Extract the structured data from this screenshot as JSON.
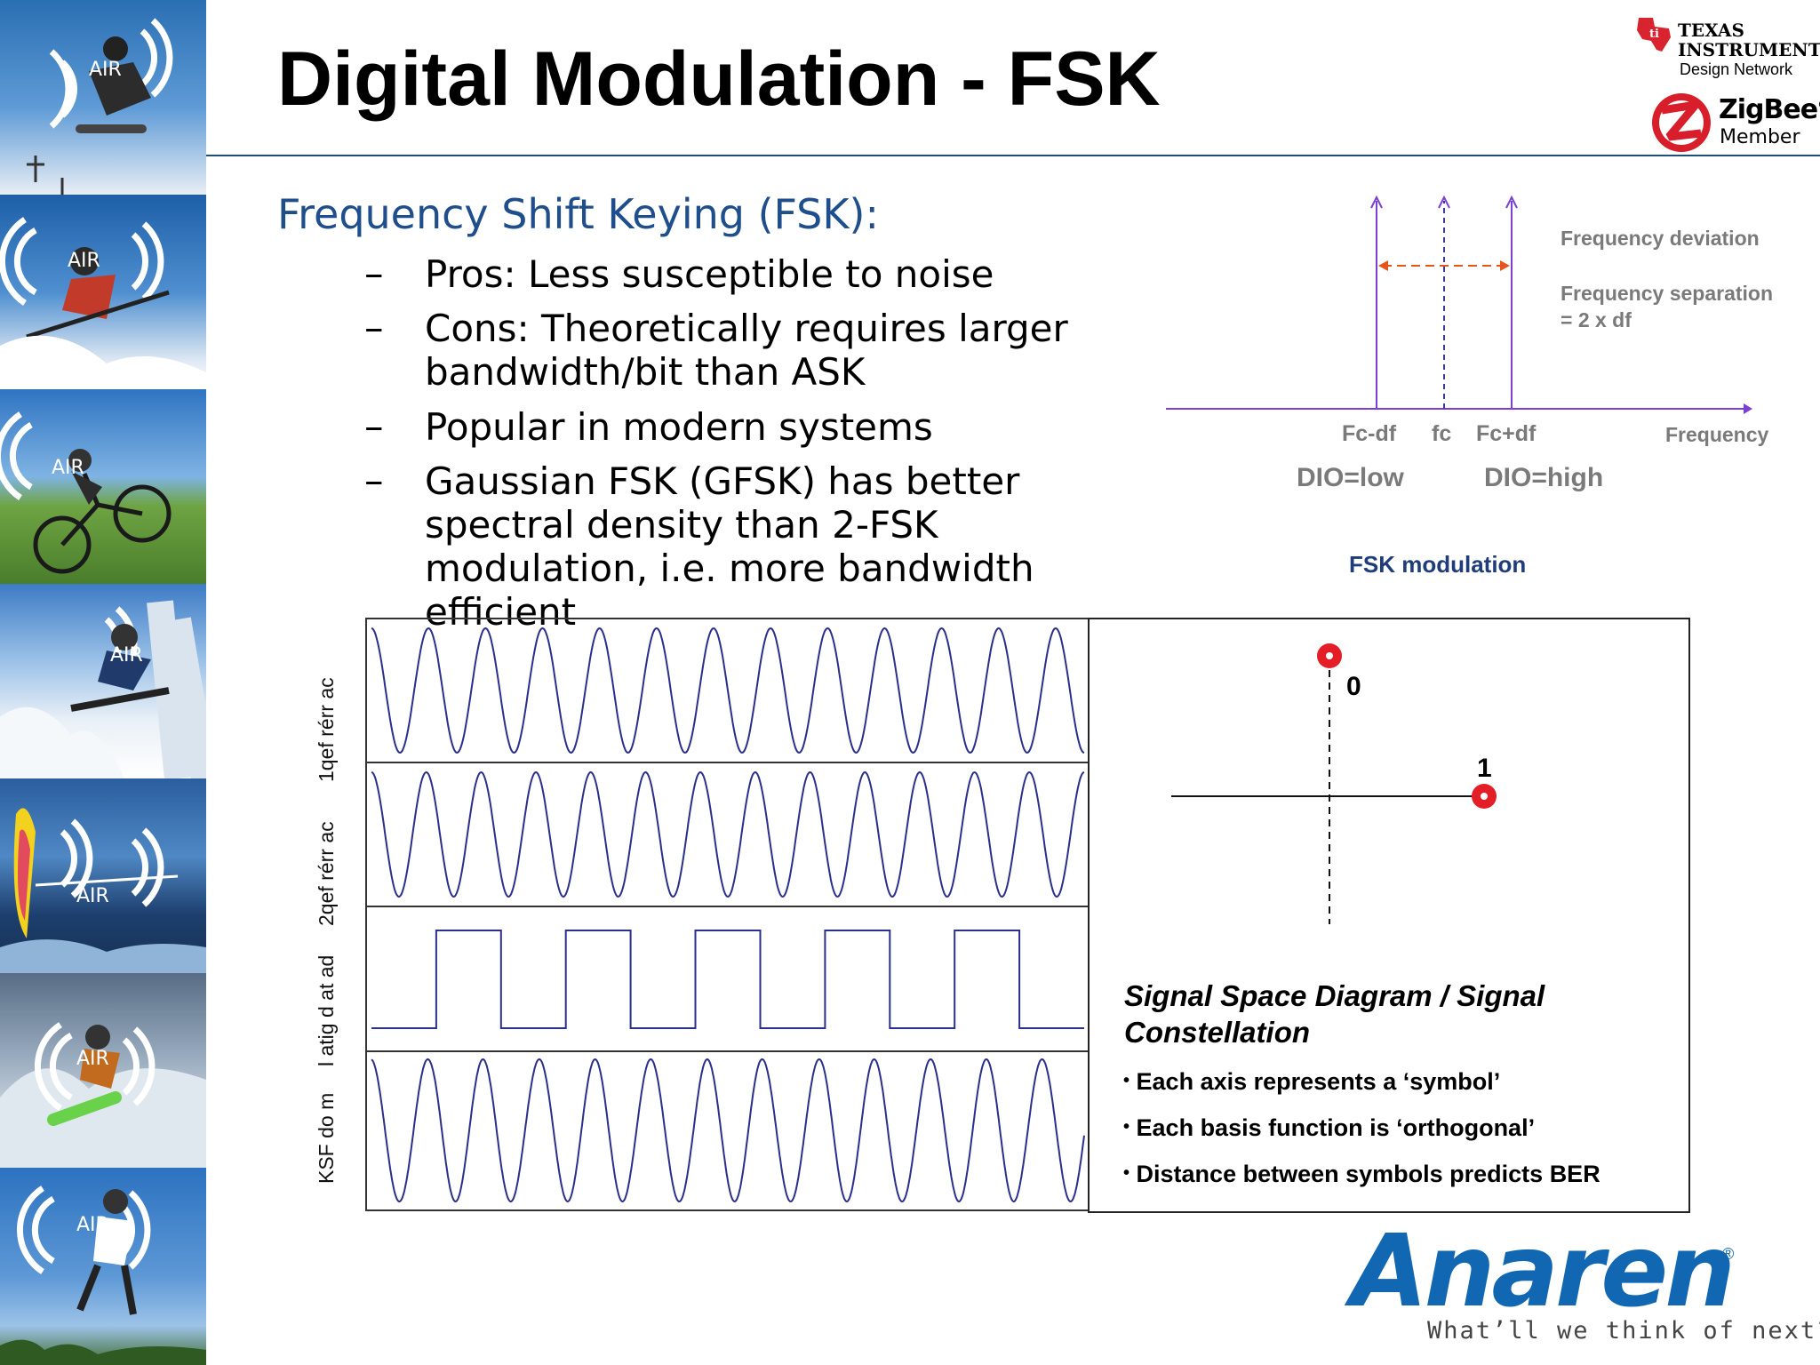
{
  "slide": {
    "title": "Digital Modulation - FSK",
    "subtitle": "Frequency Shift Keying (FSK):",
    "bullet_marker": "–",
    "bullets": [
      "Pros: Less susceptible to noise",
      "Cons: Theoretically requires larger bandwidth/bit than ASK",
      "Popular in modern systems",
      "Gaussian FSK (GFSK) has better spectral density than 2-FSK modulation, i.e. more bandwidth efficient"
    ]
  },
  "strip": {
    "badge": "AIR"
  },
  "fsk_diagram": {
    "legend_deviation": "Frequency deviation",
    "legend_separation_1": "Frequency separation",
    "legend_separation_2": "= 2 x df",
    "tick_low": "Fc-df",
    "tick_center": "fc",
    "tick_high": "Fc+df",
    "axis_label": "Frequency",
    "dio_low": "DIO=low",
    "dio_high": "DIO=high",
    "caption": "FSK modulation",
    "colors": {
      "axis": "#7b3fd6",
      "deviation": "#e8541e",
      "text": "#7a7a7a",
      "caption": "#1f3d7a"
    }
  },
  "waveforms": {
    "row_labels": [
      "1qef rérr ac",
      "2qef rérr ac",
      "l atig d at ad",
      "KSF do m"
    ],
    "carrier1_cycles": 12.5,
    "carrier2_cycles": 13,
    "digital_bits": [
      0,
      1,
      0,
      1,
      0,
      1,
      0,
      1,
      0,
      1,
      0
    ],
    "line_color": "#2a2f8c"
  },
  "constellation": {
    "symbol_0_label": "0",
    "symbol_1_label": "1",
    "point_color": "#e41e26",
    "heading": "Signal Space Diagram / Signal Constellation",
    "bullet_marker": "•",
    "items": [
      "Each axis represents a ‘symbol’",
      "Each basis function is ‘orthogonal’",
      "Distance between symbols predicts BER"
    ]
  },
  "logos": {
    "ti_line1": "TEXAS",
    "ti_line2": "INSTRUMENTS",
    "ti_network": "Design Network",
    "zigbee_name": "ZigBee",
    "zigbee_reg": "®",
    "zigbee_member": "Member",
    "anaren_name": "Anaren",
    "anaren_reg": "®",
    "anaren_tagline": "What’ll we think of next?",
    "anaren_tagline_reg": "®",
    "anaren_color": "#1167b1"
  }
}
